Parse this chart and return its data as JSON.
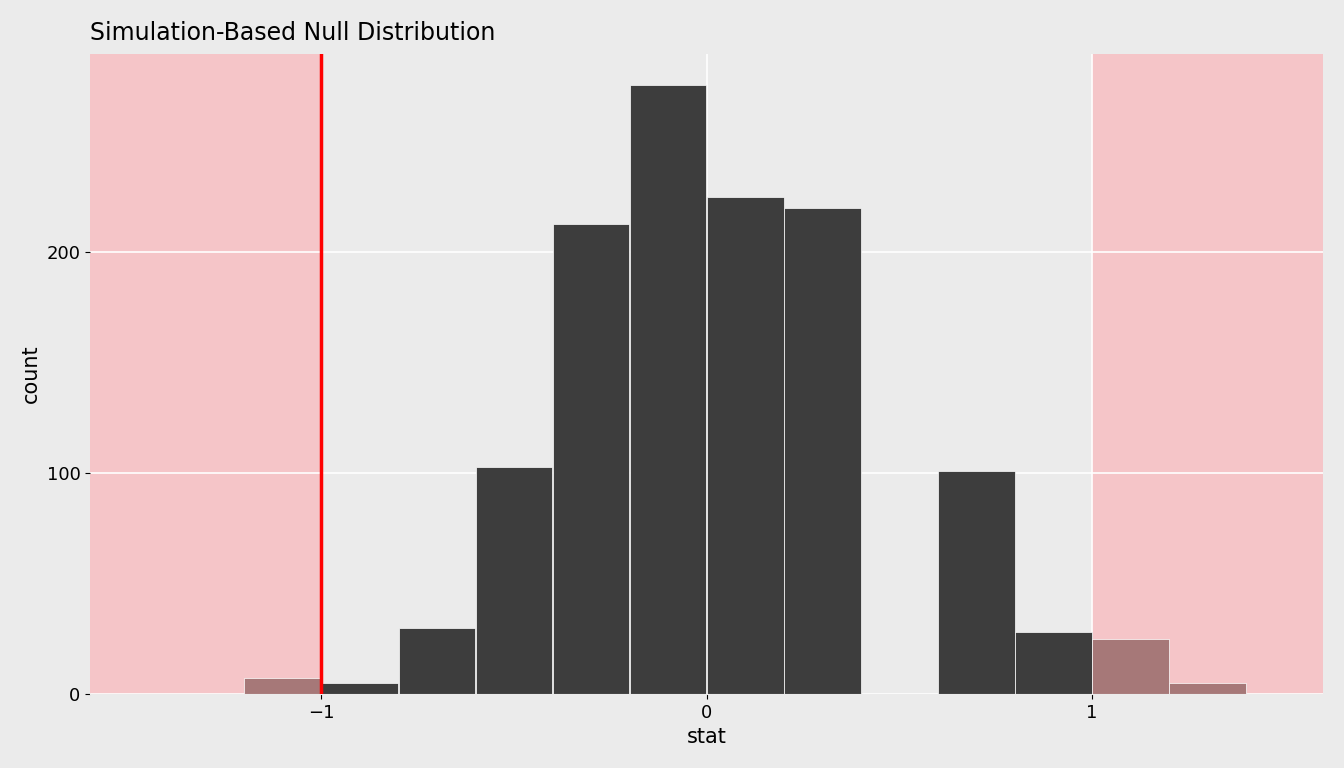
{
  "title": "Simulation-Based Null Distribution",
  "xlabel": "stat",
  "ylabel": "count",
  "xlim": [
    -1.6,
    1.6
  ],
  "ylim": [
    0,
    290
  ],
  "red_line_x": -1.0,
  "shade_boundary": 1.0,
  "yticks": [
    0,
    100,
    200
  ],
  "xticks": [
    -1,
    0,
    1
  ],
  "bg_color": "#EBEBEB",
  "fig_bg_color": "#EBEBEB",
  "pink_color": "#F5C5C8",
  "bar_color_dark": "#3D3D3D",
  "bar_color_pink": "#A67878",
  "bin_edges": [
    -1.6,
    -1.4,
    -1.2,
    -1.0,
    -0.8,
    -0.6,
    -0.4,
    -0.2,
    0.0,
    0.2,
    0.4,
    0.6,
    0.8,
    1.0,
    1.2,
    1.4,
    1.6
  ],
  "bin_counts": [
    0,
    0,
    7,
    5,
    30,
    103,
    213,
    276,
    225,
    220,
    0,
    101,
    28,
    25,
    5,
    0
  ]
}
